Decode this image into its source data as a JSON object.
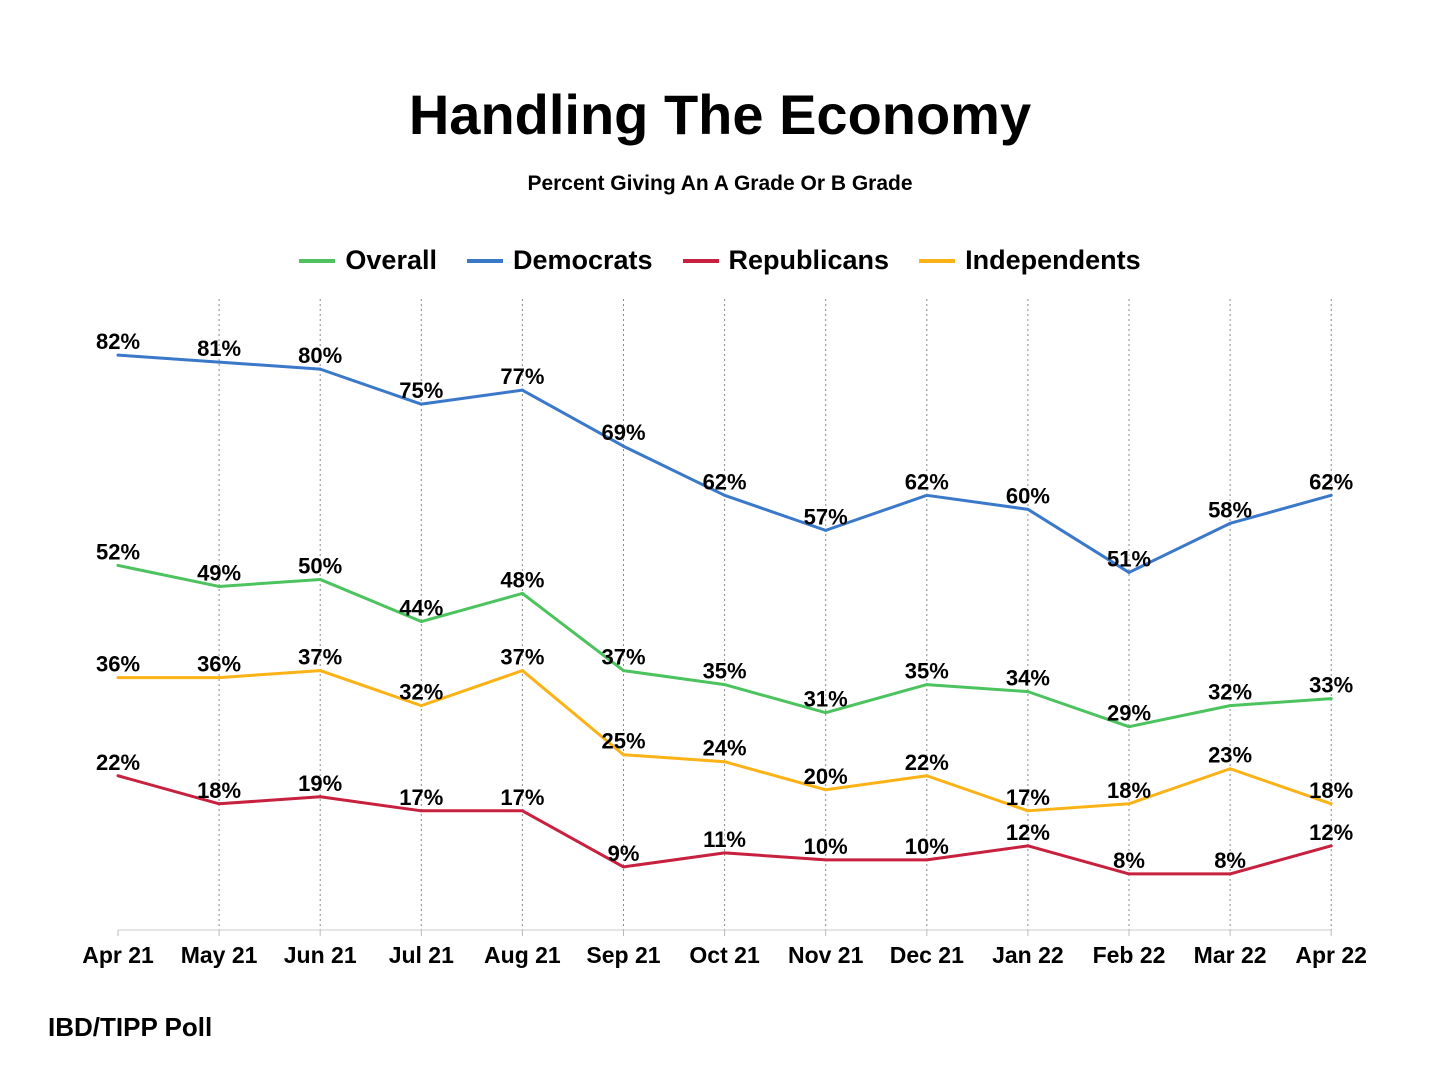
{
  "chart_data": {
    "type": "line",
    "title": "Handling The Economy",
    "subtitle": "Percent Giving An A Grade Or B Grade",
    "xlabel": "",
    "ylabel": "",
    "ylim": [
      0,
      90
    ],
    "grid": "vertical dotted",
    "legend_position": "top-center",
    "categories": [
      "Apr 21",
      "May 21",
      "Jun 21",
      "Jul 21",
      "Aug 21",
      "Sep 21",
      "Oct 21",
      "Nov 21",
      "Dec 21",
      "Jan 22",
      "Feb 22",
      "Mar 22",
      "Apr 22"
    ],
    "series": [
      {
        "name": "Overall",
        "color": "#4cc35e",
        "values": [
          52,
          49,
          50,
          44,
          48,
          37,
          35,
          31,
          35,
          34,
          29,
          32,
          33
        ]
      },
      {
        "name": "Democrats",
        "color": "#3a78c9",
        "values": [
          82,
          81,
          80,
          75,
          77,
          69,
          62,
          57,
          62,
          60,
          51,
          58,
          62
        ]
      },
      {
        "name": "Republicans",
        "color": "#c8203f",
        "values": [
          22,
          18,
          19,
          17,
          17,
          9,
          11,
          10,
          10,
          12,
          8,
          8,
          12
        ]
      },
      {
        "name": "Independents",
        "color": "#fbb216",
        "values": [
          36,
          36,
          37,
          32,
          37,
          25,
          24,
          20,
          22,
          17,
          18,
          23,
          18
        ]
      }
    ]
  },
  "source": "IBD/TIPP Poll"
}
